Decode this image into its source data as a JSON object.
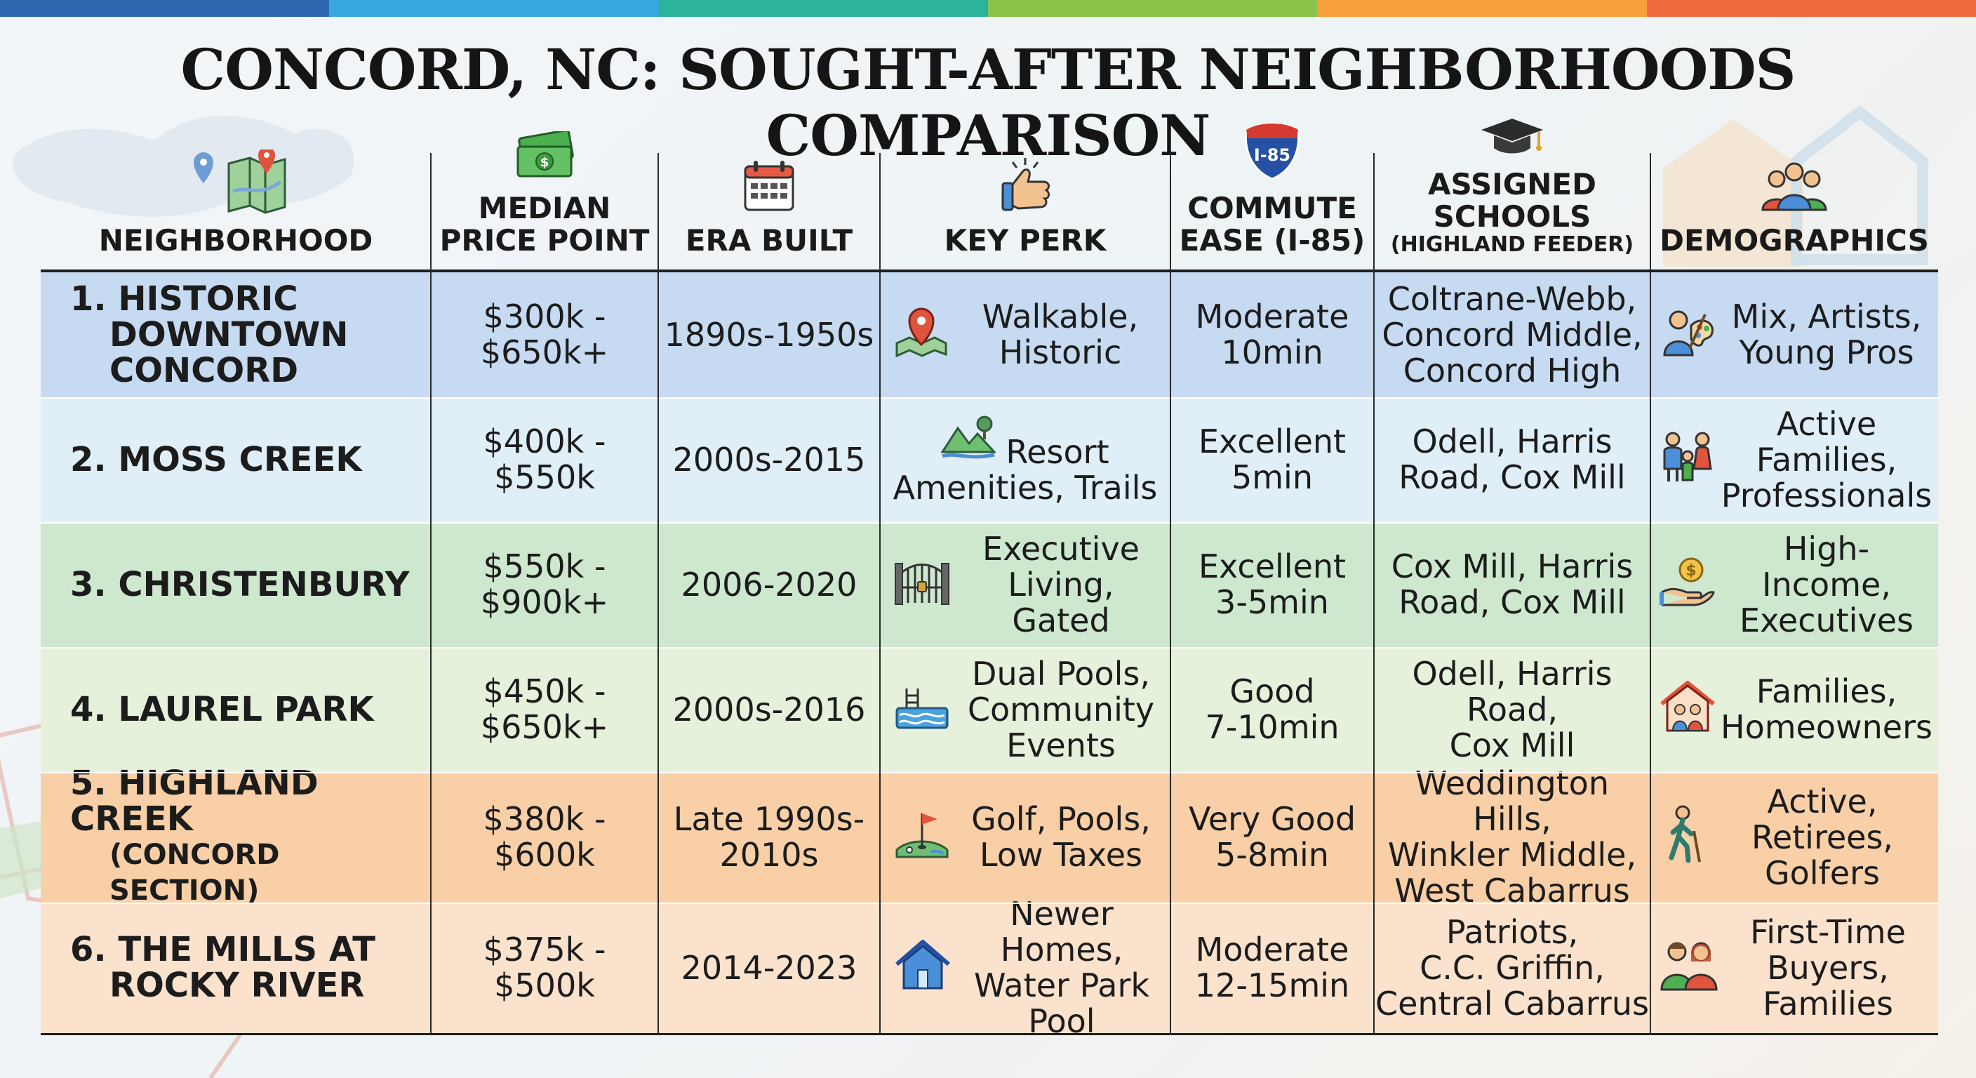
{
  "title": "CONCORD, NC: SOUGHT-AFTER NEIGHBORHOODS COMPARISON",
  "colors": {
    "stripe": [
      "#2f68b1",
      "#38a8e2",
      "#2bb39b",
      "#8bc34a",
      "#f7a03b",
      "#f06a3f"
    ],
    "row_backgrounds": [
      "#c6daf1",
      "#e0eef8",
      "#cde8cf",
      "#e6f1dc",
      "#f8cfa6",
      "#fbe2cd"
    ]
  },
  "headers": [
    {
      "lines": [
        "NEIGHBORHOOD"
      ],
      "icon": "map-pin-icon"
    },
    {
      "lines": [
        "MEDIAN",
        "PRICE POINT"
      ],
      "icon": "money-icon"
    },
    {
      "lines": [
        "ERA BUILT"
      ],
      "icon": "calendar-icon"
    },
    {
      "lines": [
        "KEY PERK"
      ],
      "icon": "thumbs-up-icon"
    },
    {
      "lines": [
        "COMMUTE",
        "EASE (I-85)"
      ],
      "icon": "interstate-shield-icon",
      "icon_label": "I-85"
    },
    {
      "lines": [
        "ASSIGNED",
        "SCHOOLS"
      ],
      "sub": "(HIGHLAND FEEDER)",
      "icon": "graduation-cap-icon"
    },
    {
      "lines": [
        "DEMOGRAPHICS"
      ],
      "icon": "people-group-icon"
    }
  ],
  "rows": [
    {
      "name_lines": [
        "1.  HISTORIC",
        "DOWNTOWN",
        "CONCORD"
      ],
      "name_sub": "",
      "price": [
        "$300k -",
        "$650k+"
      ],
      "era": [
        "1890s-1950s"
      ],
      "perk_icon": "map-location-icon",
      "perk": [
        "Walkable,",
        "Historic"
      ],
      "commute": [
        "Moderate",
        "10min"
      ],
      "schools": [
        "Coltrane-Webb,",
        "Concord Middle,",
        "Concord High"
      ],
      "demo_icon": "artist-icon",
      "demo": [
        "Mix, Artists,",
        "Young Pros"
      ]
    },
    {
      "name_lines": [
        "2. MOSS CREEK"
      ],
      "name_sub": "",
      "price": [
        "$400k -",
        "$550k"
      ],
      "era": [
        "2000s-2015"
      ],
      "perk_icon": "mountain-trail-icon",
      "perk": [
        "Resort",
        "Amenities, Trails"
      ],
      "commute": [
        "Excellent",
        "5min"
      ],
      "schools": [
        "Odell, Harris",
        "Road, Cox Mill"
      ],
      "demo_icon": "family-icon",
      "demo": [
        "Active Families,",
        "Professionals"
      ]
    },
    {
      "name_lines": [
        "3. CHRISTENBURY"
      ],
      "name_sub": "",
      "price": [
        "$550k -",
        "$900k+"
      ],
      "era": [
        "2006-2020"
      ],
      "perk_icon": "gate-icon",
      "perk": [
        "Executive",
        "Living, Gated"
      ],
      "commute": [
        "Excellent",
        "3-5min"
      ],
      "schools": [
        "Cox Mill, Harris",
        "Road, Cox Mill"
      ],
      "demo_icon": "money-hand-icon",
      "demo": [
        "High-Income,",
        "Executives"
      ]
    },
    {
      "name_lines": [
        "4. LAUREL PARK"
      ],
      "name_sub": "",
      "price": [
        "$450k -",
        "$650k+"
      ],
      "era": [
        "2000s-2016"
      ],
      "perk_icon": "pool-icon",
      "perk": [
        "Dual Pools,",
        "Community",
        "Events"
      ],
      "commute": [
        "Good",
        "7-10min"
      ],
      "schools": [
        "Odell, Harris Road,",
        "Cox Mill"
      ],
      "demo_icon": "home-family-icon",
      "demo": [
        "Families,",
        "Homeowners"
      ]
    },
    {
      "name_lines": [
        "5. HIGHLAND CREEK"
      ],
      "name_sub": "(CONCORD SECTION)",
      "price": [
        "$380k -",
        "$600k"
      ],
      "era": [
        "Late 1990s-",
        "2010s"
      ],
      "perk_icon": "golf-icon",
      "perk": [
        "Golf, Pools,",
        "Low Taxes"
      ],
      "commute": [
        "Very Good",
        "5-8min"
      ],
      "schools": [
        "Weddington Hills,",
        "Winkler Middle,",
        "West Cabarrus"
      ],
      "demo_icon": "hiker-icon",
      "demo": [
        "Active,",
        "Retirees,",
        "Golfers"
      ]
    },
    {
      "name_lines": [
        "6. THE MILLS AT",
        "ROCKY RIVER"
      ],
      "name_sub": "",
      "price": [
        "$375k -",
        "$500k"
      ],
      "era": [
        "2014-2023"
      ],
      "perk_icon": "house-icon",
      "perk": [
        "Newer Homes,",
        "Water Park",
        "Pool"
      ],
      "commute": [
        "Moderate",
        "12-15min"
      ],
      "schools": [
        "Patriots,",
        "C.C. Griffin,",
        "Central Cabarrus"
      ],
      "demo_icon": "couple-icon",
      "demo": [
        "First-Time",
        "Buyers,",
        "Families"
      ]
    }
  ]
}
